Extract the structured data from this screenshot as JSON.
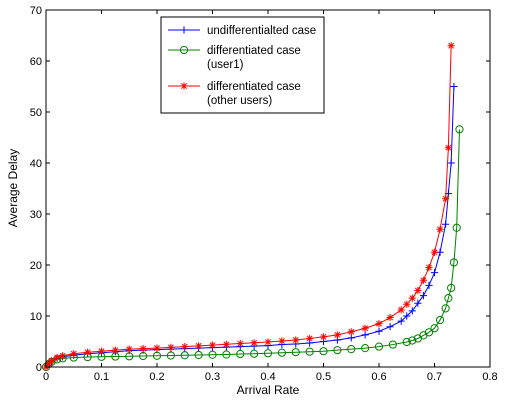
{
  "chart_data": {
    "type": "line",
    "xlabel": "Arrival Rate",
    "ylabel": "Average Delay",
    "xlim": [
      0,
      0.8
    ],
    "ylim": [
      0,
      70
    ],
    "xticks": [
      "0",
      "0.1",
      "0.2",
      "0.3",
      "0.4",
      "0.5",
      "0.6",
      "0.7",
      "0.8"
    ],
    "yticks": [
      "0",
      "10",
      "20",
      "30",
      "40",
      "50",
      "60",
      "70"
    ],
    "grid": false,
    "legend_position": "top-center",
    "series": [
      {
        "name": "undifferentialted case",
        "color": "#0000ff",
        "marker": "plus",
        "x": [
          0,
          0.005,
          0.01,
          0.02,
          0.03,
          0.05,
          0.075,
          0.1,
          0.125,
          0.15,
          0.175,
          0.2,
          0.225,
          0.25,
          0.275,
          0.3,
          0.325,
          0.35,
          0.375,
          0.4,
          0.425,
          0.45,
          0.475,
          0.5,
          0.525,
          0.55,
          0.575,
          0.6,
          0.62,
          0.64,
          0.65,
          0.66,
          0.67,
          0.68,
          0.69,
          0.7,
          0.71,
          0.72,
          0.725,
          0.73,
          0.735
        ],
        "values": [
          0,
          0.6,
          1.1,
          1.7,
          2.0,
          2.3,
          2.6,
          2.8,
          3.0,
          3.2,
          3.3,
          3.4,
          3.5,
          3.6,
          3.7,
          3.8,
          3.9,
          4.0,
          4.1,
          4.2,
          4.4,
          4.5,
          4.7,
          5.0,
          5.3,
          5.7,
          6.3,
          7.0,
          7.9,
          9.0,
          10.0,
          11.0,
          12.5,
          14.0,
          16.0,
          18.5,
          22.5,
          28.0,
          34.0,
          40.0,
          55.0
        ]
      },
      {
        "name": "differentiated case\n(user1)",
        "color": "#008000",
        "marker": "circle",
        "x": [
          0,
          0.005,
          0.01,
          0.02,
          0.03,
          0.05,
          0.075,
          0.1,
          0.125,
          0.15,
          0.175,
          0.2,
          0.225,
          0.25,
          0.275,
          0.3,
          0.325,
          0.35,
          0.375,
          0.4,
          0.425,
          0.45,
          0.475,
          0.5,
          0.525,
          0.55,
          0.575,
          0.6,
          0.625,
          0.65,
          0.66,
          0.67,
          0.68,
          0.69,
          0.7,
          0.71,
          0.72,
          0.725,
          0.73,
          0.735,
          0.74,
          0.745
        ],
        "values": [
          0,
          0.6,
          1.0,
          1.5,
          1.7,
          1.85,
          1.95,
          2.0,
          2.05,
          2.1,
          2.15,
          2.2,
          2.25,
          2.3,
          2.35,
          2.4,
          2.45,
          2.55,
          2.6,
          2.7,
          2.8,
          2.9,
          3.0,
          3.1,
          3.3,
          3.5,
          3.7,
          4.0,
          4.4,
          4.9,
          5.2,
          5.6,
          6.2,
          6.8,
          7.6,
          9.2,
          11.5,
          13.5,
          15.5,
          20.5,
          27.3,
          46.6
        ]
      },
      {
        "name": "differentiated case\n(other users)",
        "color": "#ff0000",
        "marker": "star",
        "x": [
          0,
          0.005,
          0.01,
          0.02,
          0.03,
          0.05,
          0.075,
          0.1,
          0.125,
          0.15,
          0.175,
          0.2,
          0.225,
          0.25,
          0.275,
          0.3,
          0.325,
          0.35,
          0.375,
          0.4,
          0.425,
          0.45,
          0.475,
          0.5,
          0.525,
          0.55,
          0.575,
          0.6,
          0.62,
          0.64,
          0.65,
          0.66,
          0.67,
          0.68,
          0.69,
          0.7,
          0.71,
          0.72,
          0.725,
          0.73
        ],
        "values": [
          0,
          0.6,
          1.2,
          1.9,
          2.2,
          2.6,
          2.9,
          3.1,
          3.3,
          3.5,
          3.6,
          3.7,
          3.85,
          4.0,
          4.15,
          4.3,
          4.45,
          4.6,
          4.75,
          4.9,
          5.1,
          5.3,
          5.6,
          5.9,
          6.3,
          6.9,
          7.6,
          8.5,
          9.7,
          11.2,
          12.3,
          13.5,
          15.0,
          17.0,
          19.5,
          22.5,
          27.0,
          33.0,
          43.0,
          63.0
        ]
      }
    ]
  }
}
